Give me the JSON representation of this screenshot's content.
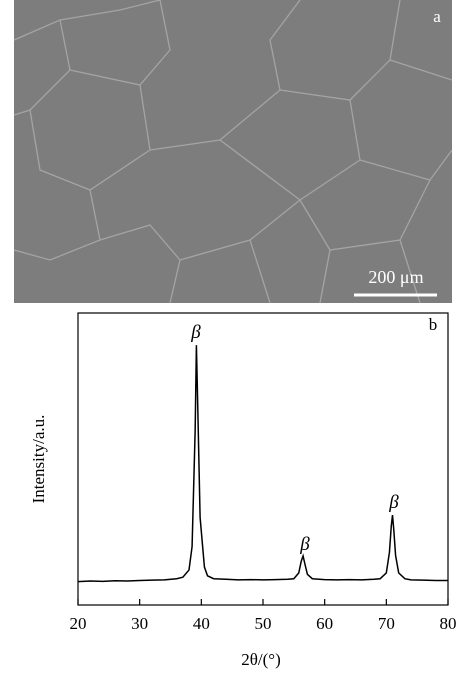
{
  "image": {
    "panel_label": "a",
    "scale_bar": "200 μm"
  },
  "chart_data": {
    "type": "line",
    "panel_label": "b",
    "x_label": "2θ/(°)",
    "y_label": "Intensity/a.u.",
    "annotations": [
      "β",
      "β",
      "β"
    ],
    "x": [
      20,
      22,
      24,
      26,
      28,
      30,
      32,
      34,
      36,
      37,
      38,
      38.5,
      39,
      39.2,
      39.4,
      39.8,
      40.5,
      41,
      42,
      44,
      46,
      48,
      50,
      52,
      54,
      55,
      55.8,
      56.2,
      56.5,
      56.8,
      57.2,
      58,
      60,
      62,
      64,
      66,
      68,
      69,
      70,
      70.5,
      70.8,
      71,
      71.2,
      71.5,
      72,
      73,
      74,
      76,
      78,
      80
    ],
    "values": [
      8,
      8.2,
      8.1,
      8.3,
      8.2,
      8.4,
      8.5,
      8.6,
      9,
      9.5,
      12,
      20,
      60,
      89,
      70,
      30,
      13,
      10,
      9,
      8.8,
      8.6,
      8.7,
      8.6,
      8.7,
      8.8,
      9,
      11,
      15,
      16.8,
      14,
      10.5,
      9,
      8.7,
      8.6,
      8.7,
      8.6,
      8.8,
      9,
      11,
      18,
      27,
      30.8,
      26,
      17,
      11,
      9,
      8.6,
      8.5,
      8.4,
      8.4
    ],
    "color": "#000000",
    "xlim": [
      20,
      80
    ],
    "xticks": [
      20,
      30,
      40,
      50,
      60,
      70,
      80
    ],
    "ylim": [
      0,
      100
    ]
  }
}
